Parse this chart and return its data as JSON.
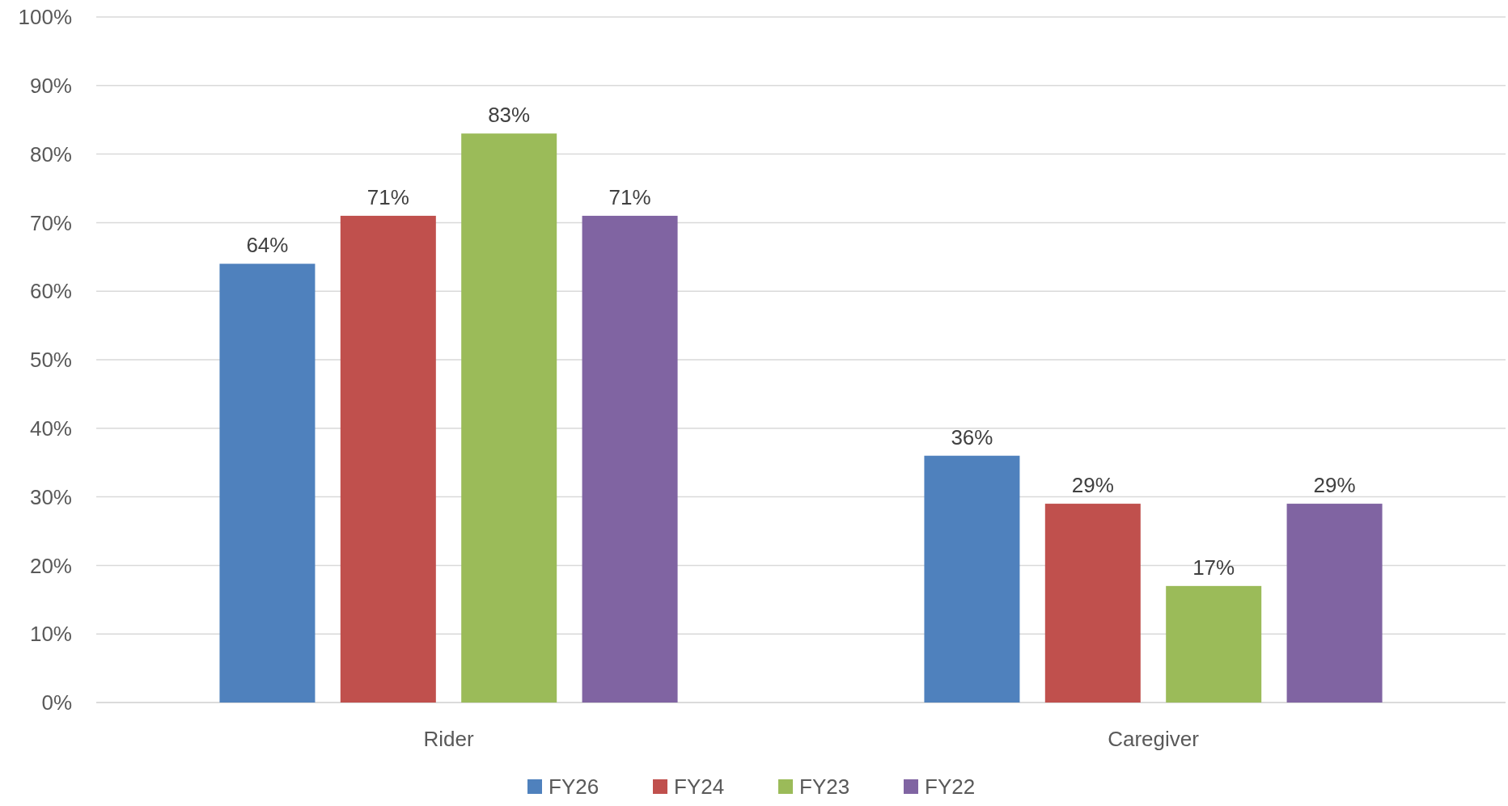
{
  "chart_data": {
    "type": "bar",
    "categories": [
      "Rider",
      "Caregiver"
    ],
    "series": [
      {
        "name": "FY26",
        "color": "#4f81bd",
        "values": [
          64,
          36
        ],
        "value_labels": [
          "64%",
          "36%"
        ]
      },
      {
        "name": "FY24",
        "color": "#c0504d",
        "values": [
          71,
          29
        ],
        "value_labels": [
          "71%",
          "29%"
        ]
      },
      {
        "name": "FY23",
        "color": "#9bbb59",
        "values": [
          83,
          17
        ],
        "value_labels": [
          "83%",
          "17%"
        ]
      },
      {
        "name": "FY22",
        "color": "#8064a2",
        "values": [
          71,
          29
        ],
        "value_labels": [
          "71%",
          "29%"
        ]
      }
    ],
    "ylim": [
      0,
      100
    ],
    "yticks": [
      {
        "value": 0,
        "label": "0%"
      },
      {
        "value": 10,
        "label": "10%"
      },
      {
        "value": 20,
        "label": "20%"
      },
      {
        "value": 30,
        "label": "30%"
      },
      {
        "value": 40,
        "label": "40%"
      },
      {
        "value": 50,
        "label": "50%"
      },
      {
        "value": 60,
        "label": "60%"
      },
      {
        "value": 70,
        "label": "70%"
      },
      {
        "value": 80,
        "label": "80%"
      },
      {
        "value": 90,
        "label": "90%"
      },
      {
        "value": 100,
        "label": "100%"
      }
    ],
    "grid": "y",
    "legend": "bottom"
  }
}
